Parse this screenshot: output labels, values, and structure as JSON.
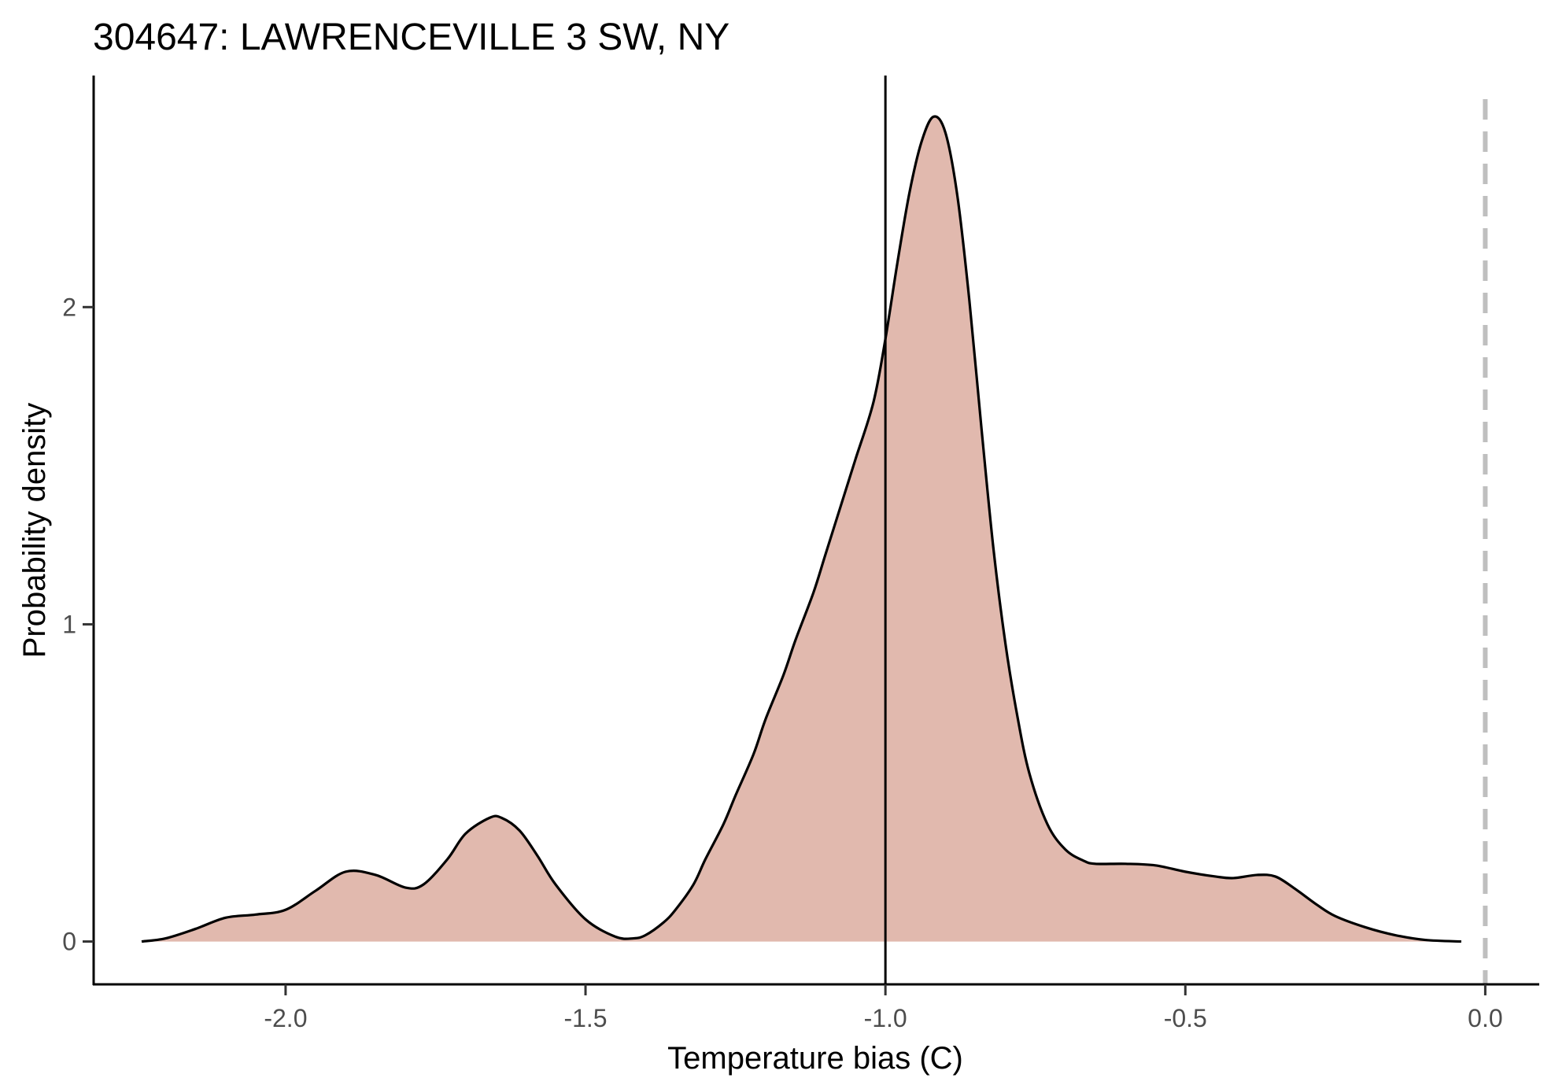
{
  "chart_data": {
    "type": "area",
    "title": "304647: LAWRENCEVILLE 3 SW, NY",
    "xlabel": "Temperature bias (C)",
    "ylabel": "Probability density",
    "xlim": [
      -2.32,
      0.09
    ],
    "ylim": [
      -0.135,
      2.73
    ],
    "x_ticks": [
      -2.0,
      -1.5,
      -1.0,
      -0.5,
      0.0
    ],
    "x_tick_labels": [
      "-2.0",
      "-1.5",
      "-1.0",
      "-0.5",
      "0.0"
    ],
    "y_ticks": [
      0,
      1,
      2
    ],
    "y_tick_labels": [
      "0",
      "1",
      "2"
    ],
    "grid": false,
    "legend": "none",
    "fill_color": "#e1b9ae",
    "line_color": "#000000",
    "series": [
      {
        "x": [
          -2.24,
          -2.2,
          -2.15,
          -2.1,
          -2.05,
          -2.0,
          -1.95,
          -1.9,
          -1.85,
          -1.8,
          -1.77,
          -1.73,
          -1.7,
          -1.66,
          -1.64,
          -1.61,
          -1.58,
          -1.55,
          -1.5,
          -1.45,
          -1.42,
          -1.4,
          -1.37,
          -1.35,
          -1.32,
          -1.3,
          -1.27,
          -1.25,
          -1.22,
          -1.2,
          -1.17,
          -1.15,
          -1.12,
          -1.1,
          -1.07,
          -1.05,
          -1.02,
          -1.0,
          -0.98,
          -0.96,
          -0.94,
          -0.92,
          -0.9,
          -0.88,
          -0.86,
          -0.84,
          -0.82,
          -0.8,
          -0.78,
          -0.76,
          -0.73,
          -0.7,
          -0.67,
          -0.65,
          -0.6,
          -0.55,
          -0.5,
          -0.45,
          -0.42,
          -0.38,
          -0.35,
          -0.32,
          -0.28,
          -0.25,
          -0.2,
          -0.15,
          -0.1,
          -0.04
        ],
        "y": [
          0.0,
          0.01,
          0.04,
          0.075,
          0.085,
          0.1,
          0.16,
          0.22,
          0.21,
          0.17,
          0.18,
          0.26,
          0.34,
          0.39,
          0.39,
          0.35,
          0.27,
          0.18,
          0.07,
          0.015,
          0.01,
          0.02,
          0.06,
          0.1,
          0.18,
          0.26,
          0.37,
          0.46,
          0.59,
          0.7,
          0.84,
          0.95,
          1.1,
          1.22,
          1.4,
          1.52,
          1.7,
          1.9,
          2.14,
          2.36,
          2.52,
          2.6,
          2.55,
          2.35,
          2.02,
          1.62,
          1.24,
          0.94,
          0.71,
          0.53,
          0.37,
          0.29,
          0.255,
          0.245,
          0.245,
          0.24,
          0.22,
          0.205,
          0.2,
          0.21,
          0.205,
          0.17,
          0.115,
          0.08,
          0.045,
          0.02,
          0.005,
          0.0
        ]
      }
    ],
    "annotations": [
      {
        "type": "vline",
        "x": -1.0,
        "style": "solid",
        "color": "#000000"
      },
      {
        "type": "vline",
        "x": 0.0,
        "style": "dashed",
        "color": "#bfbfbf"
      }
    ]
  }
}
